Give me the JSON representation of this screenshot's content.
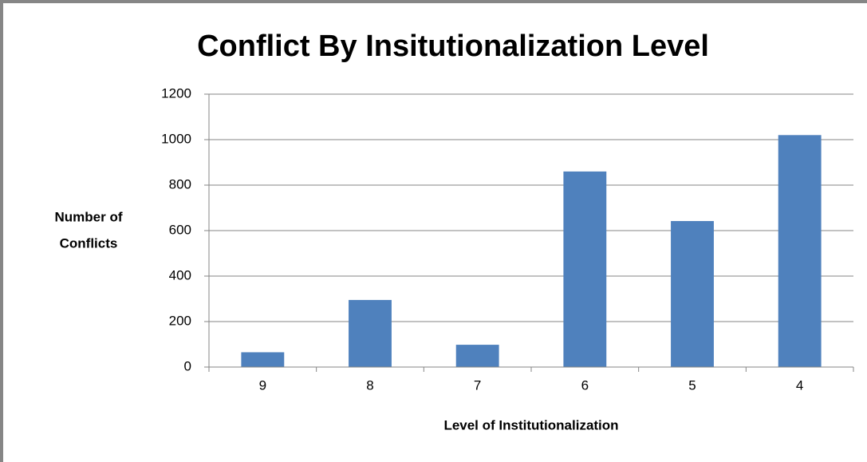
{
  "chart_data": {
    "type": "bar",
    "title": "Conflict By Insitutionalization Level",
    "x_label": "Level of Institutionalization",
    "y_label": [
      "Number of",
      "Conflicts"
    ],
    "categories": [
      "9",
      "8",
      "7",
      "6",
      "5",
      "4"
    ],
    "values": [
      65,
      295,
      98,
      860,
      642,
      1020
    ],
    "color": "#4f81bd",
    "ylim": [
      0,
      1200
    ],
    "yticks": [
      0,
      200,
      400,
      600,
      800,
      1000,
      1200
    ],
    "grid": true
  }
}
